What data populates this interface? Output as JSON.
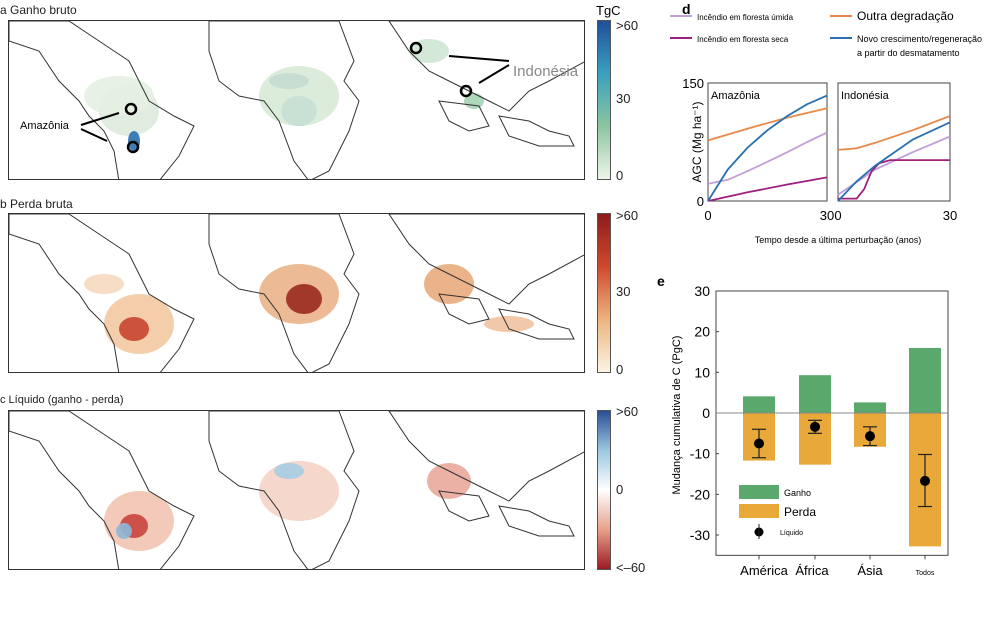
{
  "panels": {
    "a": {
      "title": "a Ganho bruto",
      "unit": "TgC",
      "ticks": [
        ">60",
        "30",
        "0"
      ],
      "annotation_amazon": "Amazônia",
      "annotation_indonesia": "Indonésia",
      "colors": [
        "#eef5ea",
        "#8cc5a0",
        "#3aa0c0",
        "#1f4f9a"
      ]
    },
    "b": {
      "title": "b Perda bruta",
      "ticks": [
        ">60",
        "30",
        "0"
      ],
      "colors": [
        "#fdf3e3",
        "#edb47e",
        "#d0492e",
        "#8e1b1b"
      ]
    },
    "c": {
      "title": "c Líquido (ganho - perda)",
      "ticks": [
        ">60",
        "0",
        "<–60"
      ],
      "colors": [
        "#2a4f96",
        "#9cc7e0",
        "#ffffff",
        "#e8a08a",
        "#9a1b22"
      ]
    }
  },
  "chart_data": [
    {
      "panel": "d",
      "type": "line",
      "ylabel": "AGC (Mg ha⁻¹)",
      "xlabel": "Tempo desde a última perturbação (anos)",
      "ylim": [
        0,
        150
      ],
      "xlim": [
        0,
        30
      ],
      "yticks": [
        "150",
        "0"
      ],
      "xticks": [
        "0",
        "30"
      ],
      "legend": [
        {
          "name": "Incêndio em floresta úmida",
          "color": "#c29fd8"
        },
        {
          "name": "Incêndio em floresta seca",
          "color": "#a0207f"
        },
        {
          "name": "Outra degradação",
          "color": "#e8894a"
        },
        {
          "name": "Novo crescimento/regeneração a partir do desmatamento",
          "color": "#2870b0"
        }
      ],
      "subplots": [
        {
          "title": "Amazônia",
          "series": [
            {
              "name": "Incêndio em floresta úmida",
              "x": [
                0,
                5,
                10,
                15,
                20,
                25,
                30
              ],
              "y": [
                22,
                27,
                38,
                50,
                62,
                75,
                87
              ]
            },
            {
              "name": "Incêndio em floresta seca",
              "x": [
                0,
                10,
                20,
                30
              ],
              "y": [
                0,
                11,
                21,
                30
              ]
            },
            {
              "name": "Outra degradação",
              "x": [
                0,
                10,
                20,
                30
              ],
              "y": [
                77,
                92,
                106,
                118
              ]
            },
            {
              "name": "Novo crescimento/regeneração a partir do desmatamento",
              "x": [
                0,
                5,
                10,
                15,
                20,
                25,
                30
              ],
              "y": [
                0,
                40,
                68,
                90,
                108,
                123,
                134
              ]
            }
          ]
        },
        {
          "title": "Indonésia",
          "series": [
            {
              "name": "Incêndio em floresta úmida",
              "x": [
                0,
                10,
                20,
                30
              ],
              "y": [
                8,
                40,
                62,
                82
              ]
            },
            {
              "name": "Incêndio em floresta seca",
              "x": [
                0,
                5,
                7,
                9,
                11,
                14,
                30
              ],
              "y": [
                3,
                3,
                15,
                38,
                48,
                52,
                52
              ]
            },
            {
              "name": "Outra degradação",
              "x": [
                0,
                5,
                10,
                20,
                30
              ],
              "y": [
                65,
                67,
                74,
                90,
                108
              ]
            },
            {
              "name": "Novo crescimento/regeneração a partir do desmatamento",
              "x": [
                0,
                5,
                10,
                20,
                30
              ],
              "y": [
                0,
                25,
                45,
                78,
                100
              ]
            }
          ]
        }
      ]
    },
    {
      "panel": "e",
      "type": "bar",
      "ylabel": "Mudança cumulativa de C (PgC)",
      "ylim": [
        -35,
        30
      ],
      "yticks": [
        30,
        20,
        10,
        0,
        -10,
        -20,
        -30
      ],
      "categories": [
        "América",
        "África",
        "Ásia",
        "Todos"
      ],
      "series": [
        {
          "name": "Ganho",
          "color": "#5aa86c",
          "values": [
            4.1,
            9.3,
            2.6,
            16.0
          ]
        },
        {
          "name": "Perda",
          "color": "#e8a83a",
          "values": [
            -11.7,
            -12.7,
            -8.3,
            -32.8
          ]
        },
        {
          "name": "Líquido",
          "color": "#000000",
          "values": [
            -7.5,
            -3.4,
            -5.7,
            -16.7
          ],
          "err_low": [
            -11,
            -5,
            -8,
            -23
          ],
          "err_high": [
            -4,
            -1.8,
            -3.4,
            -10.2
          ]
        }
      ]
    }
  ]
}
